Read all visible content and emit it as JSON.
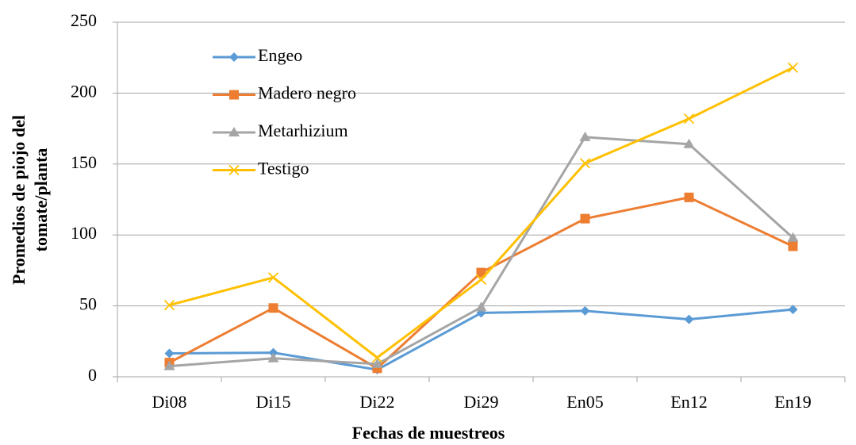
{
  "chart_data": {
    "type": "line",
    "x_label": "Fechas de muestreos",
    "y_label": [
      "Promedios de piojo del",
      "tomate/planta"
    ],
    "categories": [
      "Di08",
      "Di15",
      "Di22",
      "Di29",
      "En05",
      "En12",
      "En19"
    ],
    "series": [
      {
        "name": "Engeo",
        "color": "#5b9bd5",
        "marker": "diamond",
        "values": [
          16.5,
          17,
          5,
          45,
          46.5,
          40.5,
          47.5
        ]
      },
      {
        "name": "Madero negro",
        "color": "#ed7d31",
        "marker": "square",
        "values": [
          10,
          48.5,
          6,
          73.5,
          111.5,
          126.5,
          92
        ]
      },
      {
        "name": "Metarhizium",
        "color": "#a5a5a5",
        "marker": "triangle",
        "values": [
          7.5,
          13,
          9,
          49,
          169,
          164,
          98
        ]
      },
      {
        "name": "Testigo",
        "color": "#ffc000",
        "marker": "x",
        "values": [
          50.5,
          70,
          13.5,
          68.5,
          150.5,
          182,
          218
        ]
      }
    ],
    "ylim": [
      0,
      250
    ],
    "yticks": [
      0,
      50,
      100,
      150,
      200,
      250
    ],
    "grid": true,
    "legend": "upper left"
  }
}
